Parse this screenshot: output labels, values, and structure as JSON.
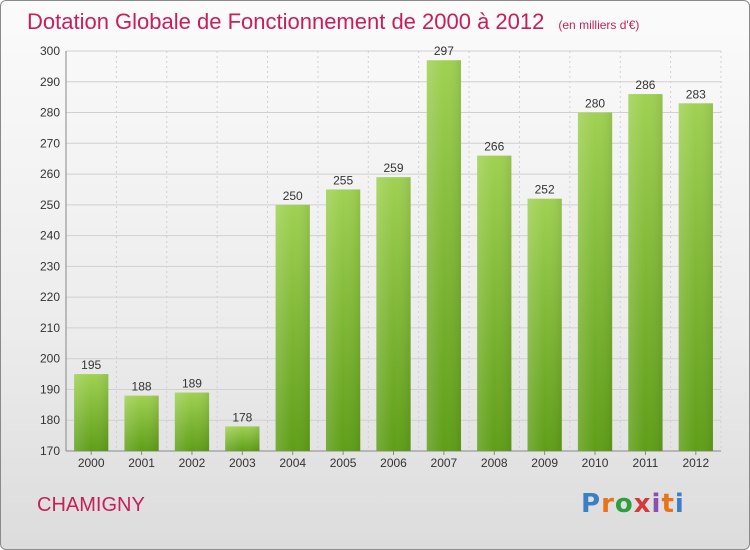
{
  "chart_data": {
    "type": "bar",
    "title": "Dotation Globale de Fonctionnement de 2000 à 2012",
    "subtitle": "(en milliers d'€)",
    "categories": [
      "2000",
      "2001",
      "2002",
      "2003",
      "2004",
      "2005",
      "2006",
      "2007",
      "2008",
      "2009",
      "2010",
      "2011",
      "2012"
    ],
    "values": [
      195,
      188,
      189,
      178,
      250,
      255,
      259,
      297,
      266,
      252,
      280,
      286,
      283
    ],
    "ylim": [
      170,
      300
    ],
    "yticks": [
      170,
      180,
      190,
      200,
      210,
      220,
      230,
      240,
      250,
      260,
      270,
      280,
      290,
      300
    ],
    "grid": true,
    "colors": {
      "bar_top": "#9fd152",
      "bar_bottom": "#5f9e18",
      "grid": "#d0d0d0",
      "title": "#c81f5a"
    }
  },
  "place_name": "CHAMIGNY",
  "logo": {
    "text": "Proxiti",
    "colors": [
      "#3b7fc4",
      "#e8731c",
      "#2e9e3e",
      "#d43a3a",
      "#8a4fb0",
      "#e8731c",
      "#3b7fc4"
    ]
  }
}
